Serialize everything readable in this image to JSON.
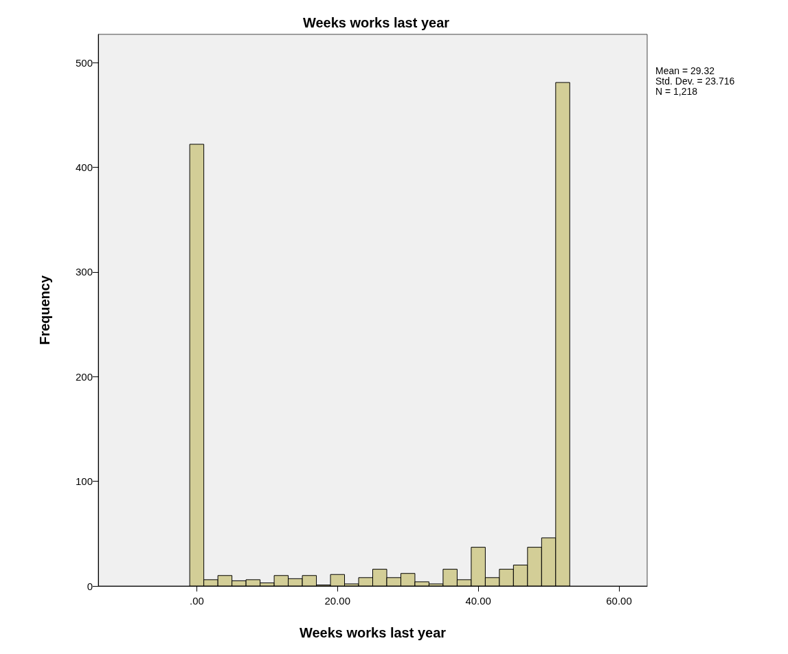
{
  "chart_data": {
    "type": "histogram",
    "title": "Weeks works last year",
    "xlabel": "Weeks works last year",
    "ylabel": "Frequency",
    "bins": [
      -1,
      1,
      3,
      5,
      7,
      9,
      11,
      13,
      15,
      17,
      19,
      21,
      23,
      25,
      27,
      29,
      31,
      33,
      35,
      37,
      39,
      41,
      43,
      45,
      47,
      49,
      51,
      53
    ],
    "values": [
      422,
      6,
      10,
      5,
      6,
      3,
      10,
      7,
      10,
      1,
      11,
      2,
      8,
      16,
      8,
      12,
      4,
      2,
      16,
      6,
      37,
      8,
      16,
      20,
      37,
      46,
      481
    ],
    "color": "#d3ce97",
    "xlim": [
      -14,
      64
    ],
    "xticks": [
      {
        "value": 0,
        "label": ".00"
      },
      {
        "value": 20,
        "label": "20.00"
      },
      {
        "value": 40,
        "label": "40.00"
      },
      {
        "value": 60,
        "label": "60.00"
      }
    ],
    "ylim": [
      0,
      527
    ],
    "yticks": [
      0,
      100,
      200,
      300,
      400,
      500
    ],
    "grid": false,
    "annotations": [
      "Mean = 29.32",
      "Std. Dev. = 23.716",
      "N = 1,218"
    ]
  }
}
